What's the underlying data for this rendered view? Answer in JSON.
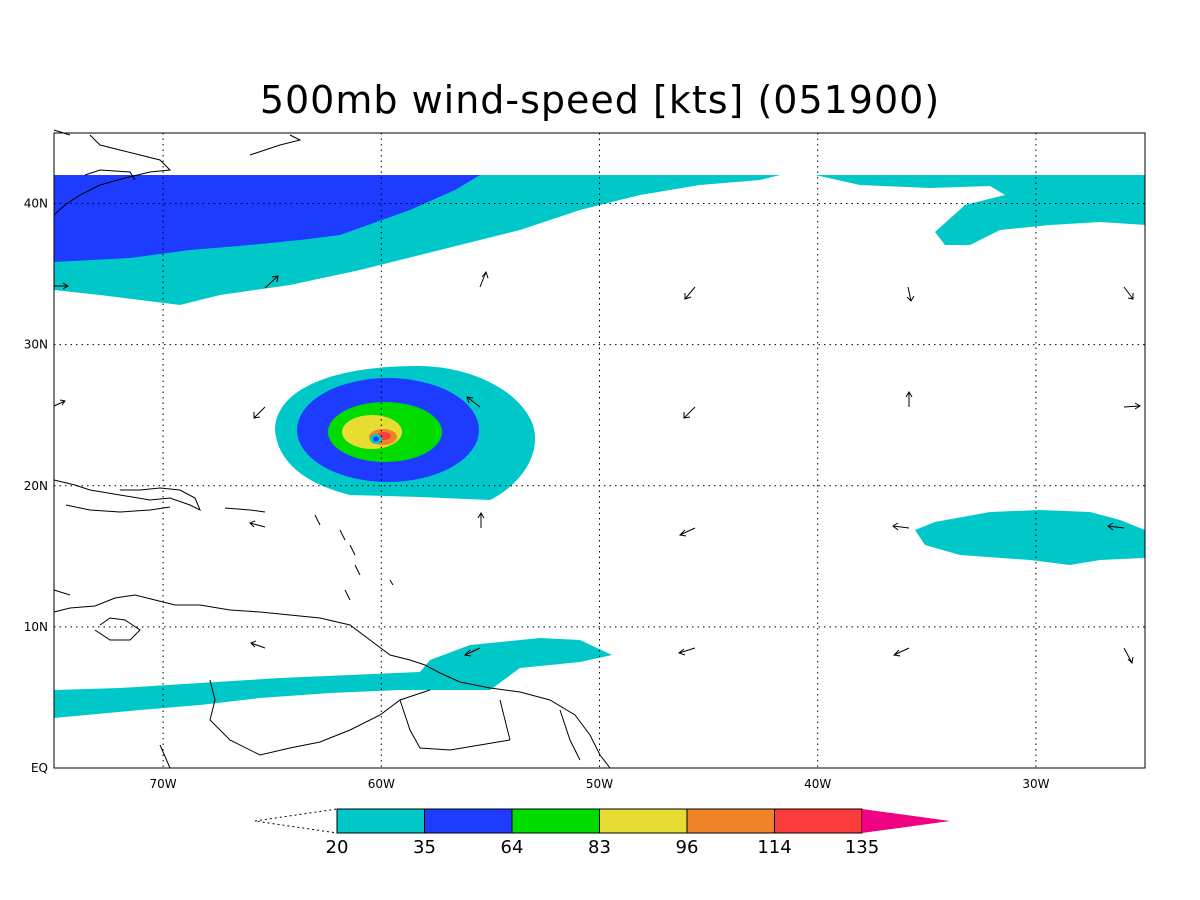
{
  "title": "500mb wind-speed [kts] (051900)",
  "map": {
    "lon_labels": [
      "70W",
      "60W",
      "50W",
      "40W",
      "30W"
    ],
    "lat_labels": [
      "EQ",
      "10N",
      "20N",
      "30N",
      "40N"
    ],
    "lon_range": [
      -75,
      -25
    ],
    "lat_range": [
      0,
      45
    ],
    "lon_ticks": [
      -70,
      -60,
      -50,
      -40,
      -30
    ],
    "lat_ticks": [
      0,
      10,
      20,
      30,
      40
    ],
    "storm_center": {
      "lon": -60,
      "lat": 23
    }
  },
  "colorbar": {
    "levels": [
      "20",
      "35",
      "64",
      "83",
      "96",
      "114",
      "135"
    ],
    "colors": [
      "#00c8c8",
      "#1e3cff",
      "#00dc00",
      "#e6dc32",
      "#f08228",
      "#fa3c3c",
      "#f00082"
    ]
  }
}
